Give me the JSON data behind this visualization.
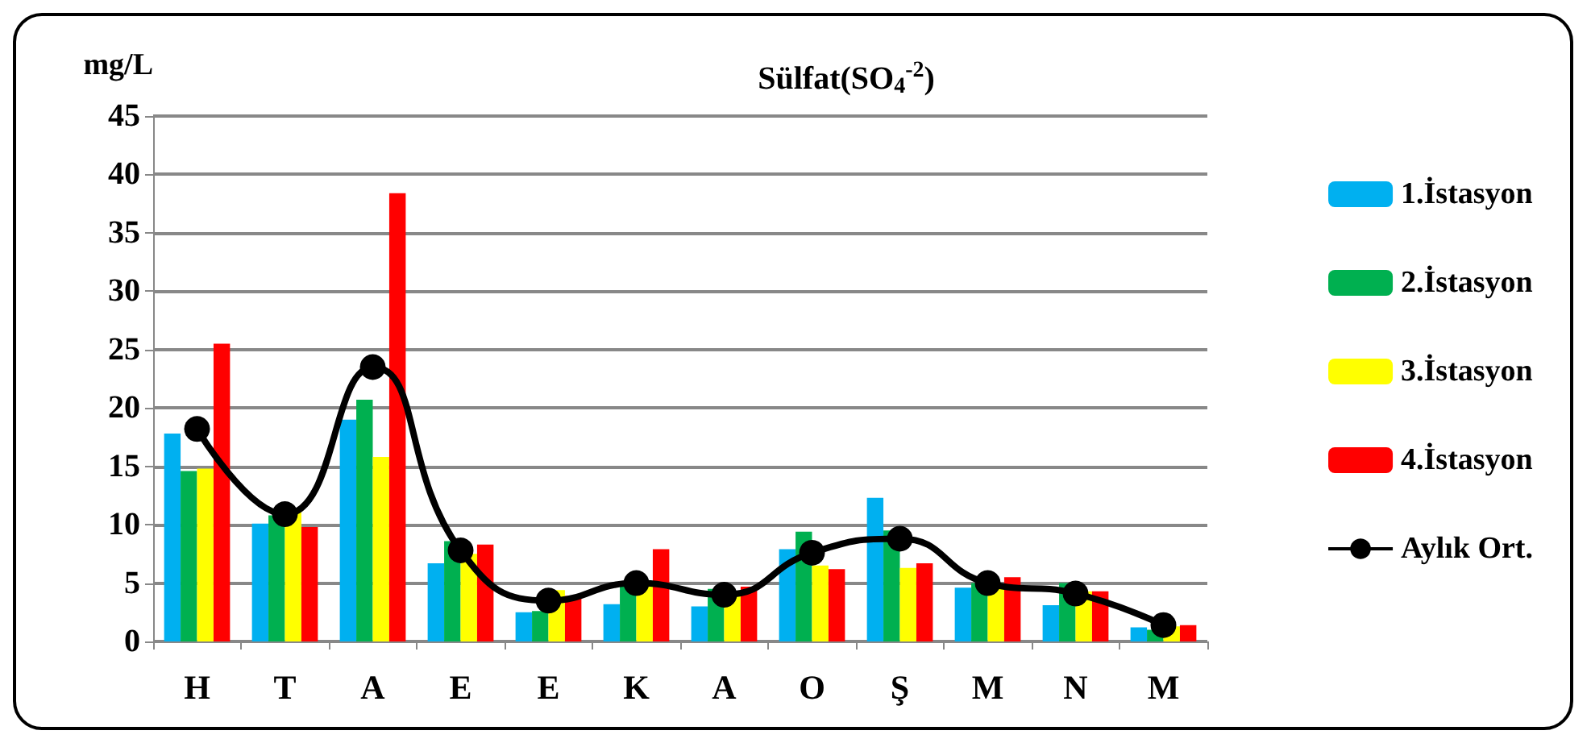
{
  "chart_data": {
    "type": "bar",
    "title": "Sülfat(SO$_{4}$$^{-2}$)",
    "ylabel": "mg/L",
    "categories": [
      "H",
      "T",
      "A",
      "E",
      "E",
      "K",
      "A",
      "O",
      "Ş",
      "M",
      "N",
      "M"
    ],
    "series": [
      {
        "name": "1.İstasyon",
        "color": "#00b0f0",
        "values": [
          17.8,
          10.1,
          19,
          6.7,
          2.5,
          3.2,
          3.0,
          7.9,
          12.3,
          4.6,
          3.1,
          1.2
        ]
      },
      {
        "name": "2.İstasyon",
        "color": "#00b050",
        "values": [
          14.6,
          10.8,
          20.7,
          8.6,
          2.6,
          4.8,
          4.5,
          9.4,
          9.5,
          5.0,
          5.0,
          1.0
        ]
      },
      {
        "name": "3.İstasyon",
        "color": "#ffff00",
        "values": [
          14.8,
          11.3,
          15.8,
          7.5,
          4.4,
          5.0,
          4.0,
          6.5,
          6.3,
          4.5,
          4.3,
          1.3
        ]
      },
      {
        "name": "4.İstasyon",
        "color": "#ff0000",
        "values": [
          25.5,
          9.8,
          38.4,
          8.3,
          3.9,
          7.9,
          4.7,
          6.2,
          6.7,
          5.5,
          4.3,
          1.4
        ]
      },
      {
        "name": "Aylık Ort.",
        "type": "line",
        "color": "#000000",
        "marker": "circle",
        "values": [
          18.2,
          10.9,
          23.5,
          7.8,
          3.5,
          5.0,
          4.0,
          7.6,
          8.8,
          5.0,
          4.1,
          1.4
        ]
      }
    ],
    "ylim": [
      0,
      45
    ],
    "yticks": [
      0,
      5,
      10,
      15,
      20,
      25,
      30,
      35,
      40,
      45
    ],
    "grid": "y",
    "legend": "right"
  }
}
